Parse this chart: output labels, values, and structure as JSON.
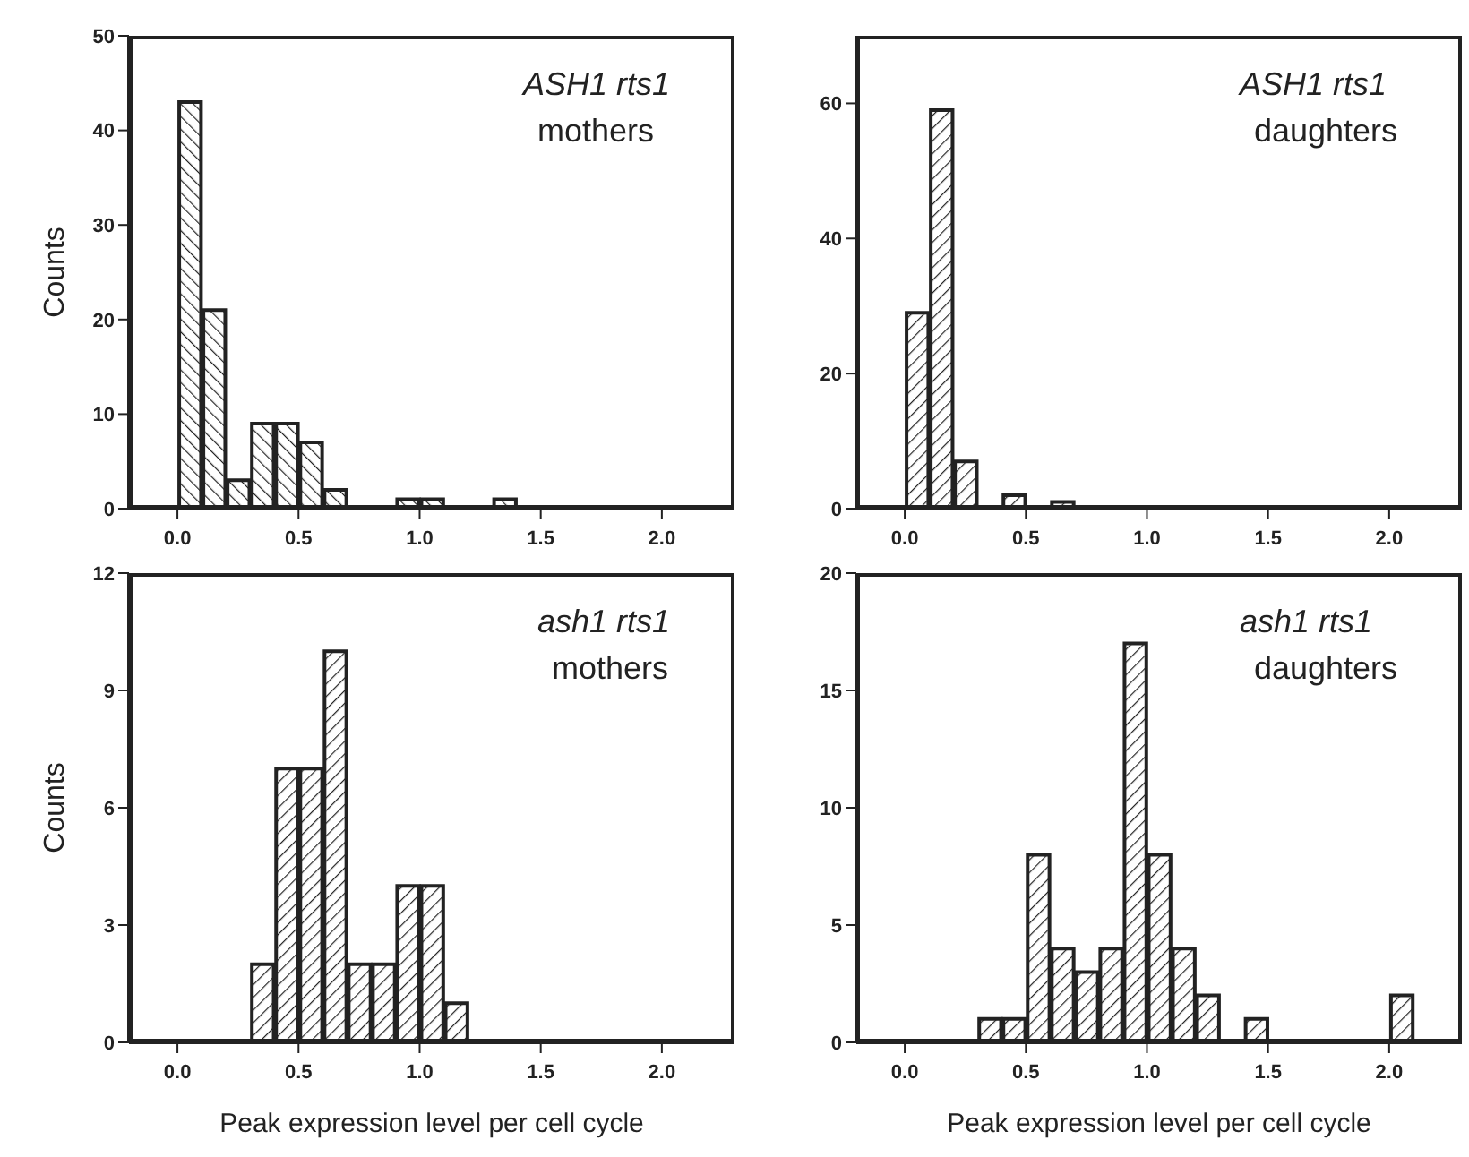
{
  "chart_data": [
    {
      "type": "histogram",
      "ylabel": "Counts",
      "annotations": [
        "ASH1 rts1",
        "mothers"
      ],
      "color": "#222222",
      "bins": [
        0.0,
        0.1,
        0.2,
        0.3,
        0.4,
        0.5,
        0.6,
        0.7,
        0.8,
        0.9,
        1.0,
        1.1,
        1.2,
        1.3,
        1.4
      ],
      "values": [
        43,
        21,
        3,
        9,
        9,
        7,
        2,
        0,
        0,
        1,
        1,
        0,
        0,
        1
      ],
      "xlim": [
        -0.2,
        2.3
      ],
      "xticks": [
        {
          "value": 0,
          "label": "0.0"
        },
        {
          "value": 0.5,
          "label": "0.5"
        },
        {
          "value": 1,
          "label": "1.0"
        },
        {
          "value": 1.5,
          "label": "1.5"
        },
        {
          "value": 2,
          "label": "2.0"
        }
      ],
      "ylim": [
        0,
        50
      ],
      "yticks": [
        0,
        10,
        20,
        30,
        40,
        50
      ],
      "grid": false,
      "legend": false
    },
    {
      "type": "histogram",
      "annotations": [
        "ASH1 rts1",
        "daughters"
      ],
      "color": "#222222",
      "bins": [
        0.0,
        0.1,
        0.2,
        0.3,
        0.4,
        0.5,
        0.6,
        0.7
      ],
      "values": [
        29,
        59,
        7,
        0,
        2,
        0,
        1
      ],
      "xlim": [
        -0.2,
        2.3
      ],
      "xticks": [
        {
          "value": 0,
          "label": "0.0"
        },
        {
          "value": 0.5,
          "label": "0.5"
        },
        {
          "value": 1,
          "label": "1.0"
        },
        {
          "value": 1.5,
          "label": "1.5"
        },
        {
          "value": 2,
          "label": "2.0"
        }
      ],
      "ylim": [
        0,
        70
      ],
      "yticks": [
        0,
        20,
        40,
        60
      ],
      "grid": false,
      "legend": false
    },
    {
      "type": "histogram",
      "ylabel": "Counts",
      "xlabel": "Peak expression level per cell cycle",
      "annotations": [
        "ash1 rts1",
        "mothers"
      ],
      "color": "#222222",
      "bins": [
        0.3,
        0.4,
        0.5,
        0.6,
        0.7,
        0.8,
        0.9,
        1.0,
        1.1,
        1.2
      ],
      "values": [
        2,
        7,
        7,
        10,
        2,
        2,
        4,
        4,
        1
      ],
      "xlim": [
        -0.2,
        2.3
      ],
      "xticks": [
        {
          "value": 0,
          "label": "0.0"
        },
        {
          "value": 0.5,
          "label": "0.5"
        },
        {
          "value": 1,
          "label": "1.0"
        },
        {
          "value": 1.5,
          "label": "1.5"
        },
        {
          "value": 2,
          "label": "2.0"
        }
      ],
      "ylim": [
        0,
        12
      ],
      "yticks": [
        0,
        3,
        6,
        9,
        12
      ],
      "grid": false,
      "legend": false
    },
    {
      "type": "histogram",
      "xlabel": "Peak expression level per cell cycle",
      "annotations": [
        "ash1 rts1",
        "daughters"
      ],
      "color": "#222222",
      "bins": [
        0.3,
        0.4,
        0.5,
        0.6,
        0.7,
        0.8,
        0.9,
        1.0,
        1.1,
        1.2,
        1.3,
        1.4,
        1.5,
        1.6,
        1.7,
        1.8,
        1.9,
        2.0,
        2.1
      ],
      "values": [
        1,
        1,
        8,
        4,
        3,
        4,
        17,
        8,
        4,
        2,
        0,
        1,
        0,
        0,
        0,
        0,
        0,
        2
      ],
      "xlim": [
        -0.2,
        2.3
      ],
      "xticks": [
        {
          "value": 0,
          "label": "0.0"
        },
        {
          "value": 0.5,
          "label": "0.5"
        },
        {
          "value": 1,
          "label": "1.0"
        },
        {
          "value": 1.5,
          "label": "1.5"
        },
        {
          "value": 2,
          "label": "2.0"
        }
      ],
      "ylim": [
        0,
        20
      ],
      "yticks": [
        0,
        5,
        10,
        15,
        20
      ],
      "grid": false,
      "legend": false
    }
  ]
}
